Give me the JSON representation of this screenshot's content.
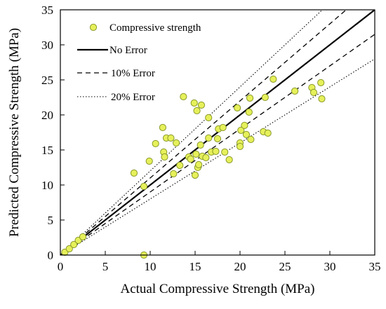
{
  "chart_data": {
    "type": "scatter",
    "xlabel": "Actual Compressive Strength (MPa)",
    "ylabel": "Predicted Compressive Strength (MPa)",
    "xlim": [
      0,
      35
    ],
    "ylim": [
      0,
      35
    ],
    "xticks": [
      0,
      5,
      10,
      15,
      20,
      25,
      30,
      35
    ],
    "yticks": [
      0,
      5,
      10,
      15,
      20,
      25,
      30,
      35
    ],
    "grid": false,
    "legend_position": "top-left",
    "series": [
      {
        "name": "Compressive strength",
        "kind": "points",
        "marker": "circle",
        "color": "#e6f05a",
        "edge_color": "#8a9a2a",
        "points": [
          [
            0.5,
            0.4
          ],
          [
            1.0,
            0.9
          ],
          [
            1.5,
            1.5
          ],
          [
            2.0,
            2.1
          ],
          [
            2.5,
            2.6
          ],
          [
            8.2,
            11.7
          ],
          [
            9.3,
            9.8
          ],
          [
            9.3,
            0.0
          ],
          [
            9.9,
            13.4
          ],
          [
            10.6,
            15.9
          ],
          [
            11.4,
            18.2
          ],
          [
            11.5,
            14.7
          ],
          [
            11.6,
            14.0
          ],
          [
            11.8,
            16.7
          ],
          [
            12.3,
            16.7
          ],
          [
            12.6,
            11.6
          ],
          [
            12.9,
            16.0
          ],
          [
            13.3,
            12.8
          ],
          [
            13.7,
            22.6
          ],
          [
            14.3,
            14.0
          ],
          [
            14.5,
            13.7
          ],
          [
            14.9,
            21.7
          ],
          [
            15.0,
            11.4
          ],
          [
            15.1,
            14.4
          ],
          [
            15.2,
            20.6
          ],
          [
            15.3,
            12.5
          ],
          [
            15.4,
            12.9
          ],
          [
            15.6,
            15.7
          ],
          [
            15.7,
            21.4
          ],
          [
            15.8,
            14.1
          ],
          [
            16.2,
            13.9
          ],
          [
            16.5,
            19.6
          ],
          [
            16.5,
            16.7
          ],
          [
            16.8,
            14.7
          ],
          [
            17.3,
            14.8
          ],
          [
            17.5,
            16.6
          ],
          [
            17.6,
            18.0
          ],
          [
            18.1,
            18.2
          ],
          [
            18.3,
            14.7
          ],
          [
            18.8,
            13.6
          ],
          [
            19.7,
            21.0
          ],
          [
            20.0,
            16.0
          ],
          [
            20.0,
            15.5
          ],
          [
            20.1,
            17.8
          ],
          [
            20.5,
            18.5
          ],
          [
            20.7,
            17.2
          ],
          [
            21.0,
            20.4
          ],
          [
            21.1,
            22.4
          ],
          [
            21.2,
            16.5
          ],
          [
            22.6,
            17.6
          ],
          [
            22.8,
            22.5
          ],
          [
            23.1,
            17.4
          ],
          [
            23.7,
            25.1
          ],
          [
            26.1,
            23.4
          ],
          [
            28.0,
            23.9
          ],
          [
            28.2,
            23.2
          ],
          [
            29.0,
            24.6
          ],
          [
            29.1,
            22.3
          ]
        ]
      },
      {
        "name": "No Error",
        "kind": "line",
        "style": "solid",
        "slope": 1.0,
        "x_range": [
          0,
          35
        ]
      },
      {
        "name": "10% Error",
        "kind": "line",
        "style": "dashed",
        "slopes": [
          1.1,
          0.9
        ],
        "x_range": [
          0,
          35
        ]
      },
      {
        "name": "20% Error",
        "kind": "line",
        "style": "dotted",
        "slopes": [
          1.2,
          0.8
        ],
        "x_range": [
          0,
          35
        ]
      }
    ]
  }
}
